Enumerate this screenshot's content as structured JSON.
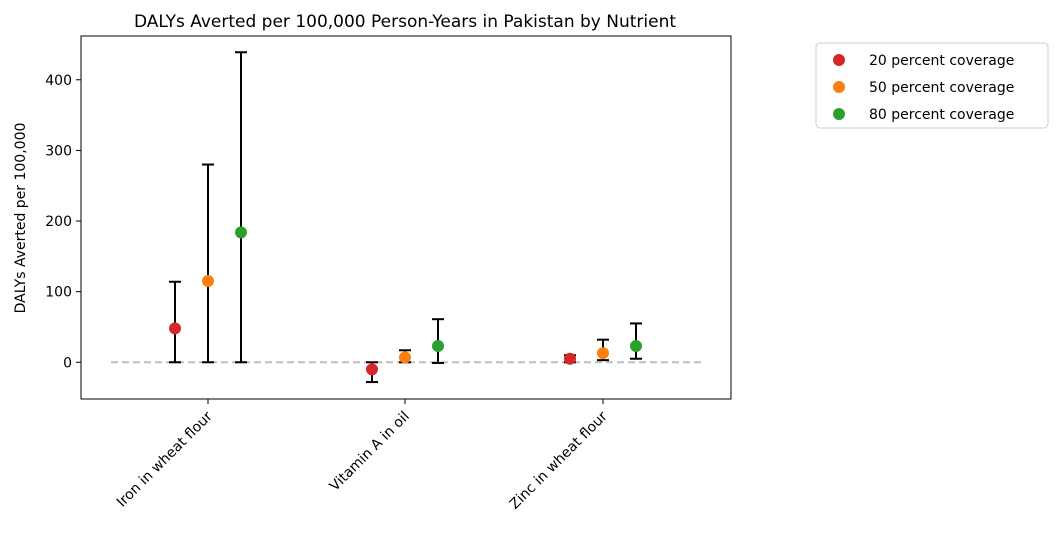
{
  "chart_data": {
    "type": "scatter",
    "title": "DALYs Averted per 100,000 Person-Years in Pakistan by Nutrient",
    "xlabel": "",
    "ylabel": "DALYs Averted per 100,000",
    "categories": [
      "Iron in wheat flour",
      "Vitamin A in oil",
      "Zinc in wheat flour"
    ],
    "ylim": [
      -52,
      462
    ],
    "yticks": [
      0,
      100,
      200,
      300,
      400
    ],
    "grid": false,
    "legend_position": "outside top-right",
    "reference_line": {
      "y": 0,
      "style": "dashed",
      "color": "#c0c0c0"
    },
    "series": [
      {
        "name": "20 percent coverage",
        "color": "#d62728",
        "values": [
          48,
          -10,
          5
        ],
        "lower": [
          0,
          -28,
          0
        ],
        "upper": [
          114,
          0,
          10
        ]
      },
      {
        "name": "50 percent coverage",
        "color": "#ff7f0e",
        "values": [
          115,
          7,
          13
        ],
        "lower": [
          0,
          0,
          3
        ],
        "upper": [
          280,
          17,
          32
        ]
      },
      {
        "name": "80 percent coverage",
        "color": "#2ca02c",
        "values": [
          184,
          23,
          23
        ],
        "lower": [
          0,
          -1,
          5
        ],
        "upper": [
          439,
          61,
          55
        ]
      }
    ]
  }
}
